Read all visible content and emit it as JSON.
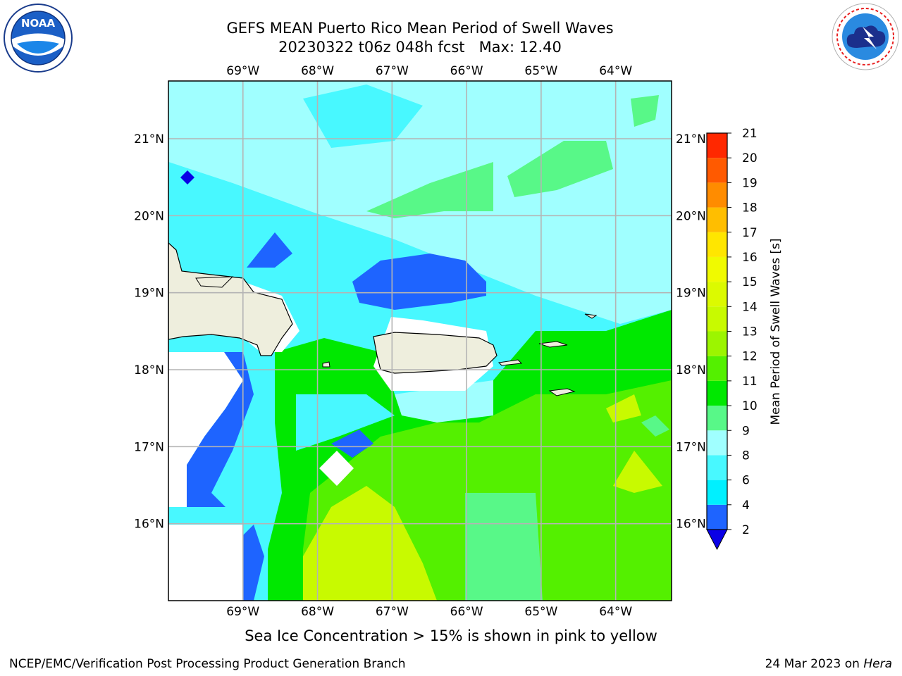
{
  "header": {
    "title_line1": "GEFS MEAN Puerto Rico Mean Period of Swell Waves",
    "title_line2": "20230322 t06z 048h fcst   Max: 12.40"
  },
  "logos": {
    "left": {
      "icon": "noaa-logo-icon",
      "text": "NOAA"
    },
    "right": {
      "icon": "nws-logo-icon",
      "ring_text": "NATIONAL WEATHER SERVICE"
    }
  },
  "map": {
    "lon_labels": [
      "69°W",
      "68°W",
      "67°W",
      "66°W",
      "65°W",
      "64°W"
    ],
    "lat_labels": [
      "21°N",
      "20°N",
      "19°N",
      "18°N",
      "17°N",
      "16°N"
    ],
    "lon_values": [
      -69,
      -68,
      -67,
      -66,
      -65,
      -64
    ],
    "lat_values": [
      21,
      20,
      19,
      18,
      17,
      16
    ],
    "lon_range": [
      -70,
      -63.25
    ],
    "lat_range": [
      15,
      21.75
    ],
    "land_color": "#eeeedd"
  },
  "colorbar": {
    "label": "Mean Period of Swell Waves [s]",
    "ticks": [
      "2",
      "4",
      "6",
      "8",
      "9",
      "10",
      "11",
      "12",
      "13",
      "14",
      "15",
      "16",
      "17",
      "18",
      "19",
      "20",
      "21"
    ],
    "colors": [
      "#1e64ff",
      "#00f0ff",
      "#48f8ff",
      "#a0ffff",
      "#58f888",
      "#00e800",
      "#54f000",
      "#9cf500",
      "#c8fa00",
      "#dcfa00",
      "#f0fa00",
      "#ffe600",
      "#ffbe00",
      "#ff8c00",
      "#ff5a00",
      "#ff2800",
      "#ff0000"
    ],
    "extend_color": "#0a00e6"
  },
  "footer": {
    "sea_ice_note": "Sea Ice Concentration > 15% is shown in pink to yellow",
    "left": "NCEP/EMC/Verification Post Processing Product Generation Branch",
    "right_prefix": "24 Mar 2023 on ",
    "right_host": "Hera"
  }
}
